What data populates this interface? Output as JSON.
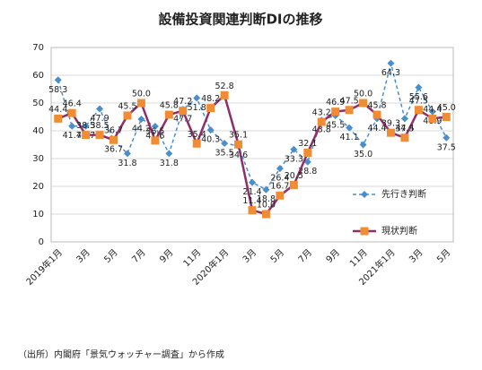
{
  "chart_data": {
    "type": "line",
    "title": "設備投資関連判断DIの推移",
    "note": "（出所）内閣府「景気ウォッチャー調査」から作成",
    "categories": [
      "2019年1月",
      null,
      "3月",
      null,
      "5月",
      null,
      "7月",
      null,
      "9月",
      null,
      "11月",
      null,
      "2020年1月",
      null,
      "3月",
      null,
      "5月",
      null,
      "7月",
      null,
      "9月",
      null,
      "11月",
      null,
      "2021年1月",
      null,
      "3月",
      null,
      "5月"
    ],
    "series": [
      {
        "name": "先行き判断",
        "color": "#4a8fcb",
        "marker_color": "#4a8fcb",
        "dashed": true,
        "marker": "diamond",
        "values": [
          58.3,
          41.7,
          41.7,
          47.9,
          36.7,
          31.8,
          44.2,
          41.6,
          31.8,
          47.7,
          51.8,
          40.3,
          35.5,
          34.6,
          21.4,
          18.8,
          26.4,
          33.3,
          28.8,
          43.8,
          45.5,
          41.1,
          35.0,
          44.4,
          64.3,
          44.4,
          55.6,
          46.9,
          37.5
        ],
        "value_labels": [
          "58.3",
          "41.7",
          "41.7",
          "47.9",
          "36.7",
          "31.8",
          "44.2",
          "41.6",
          "31.8",
          "47.7",
          "51.8",
          "40.3",
          "35.5",
          "34.6",
          "21.4",
          "18.8",
          "26.4",
          "33.3",
          "28.8",
          "43.8",
          "45.5",
          "41.1",
          "35.0",
          "44.4",
          "64.3",
          "44.4",
          "55.6",
          "46.9",
          "37.5"
        ]
      },
      {
        "name": "現状判断",
        "color": "#8e2e6a",
        "marker_color": "#f08c34",
        "dashed": false,
        "marker": "square",
        "values": [
          44.4,
          46.4,
          38.5,
          38.5,
          36.7,
          45.5,
          50.0,
          36.5,
          45.8,
          47.2,
          35.4,
          48.2,
          52.8,
          35.1,
          11.4,
          10.0,
          16.7,
          20.5,
          32.1,
          43.2,
          46.9,
          47.5,
          50.0,
          45.8,
          39.3,
          37.5,
          47.5,
          44.4,
          45.0
        ],
        "value_labels": [
          "44.4",
          "46.4",
          "38.5",
          "38.5",
          "36.7",
          "45.5",
          "50.0",
          "36.5",
          "45.8",
          "47.2",
          "35.4",
          "48.2",
          "52.8",
          "35.1",
          "11.4",
          "10.0",
          "16.7",
          "20.5",
          "32.1",
          "43.2",
          "46.9",
          "47.5",
          "50.0",
          "45.8",
          "39.3",
          "37.5",
          "47.5",
          "44.4",
          "45.0"
        ]
      }
    ],
    "ylim": [
      0,
      70
    ],
    "yticks": [
      0,
      10,
      20,
      30,
      40,
      50,
      60,
      70
    ],
    "grid": true,
    "legend": "right"
  }
}
